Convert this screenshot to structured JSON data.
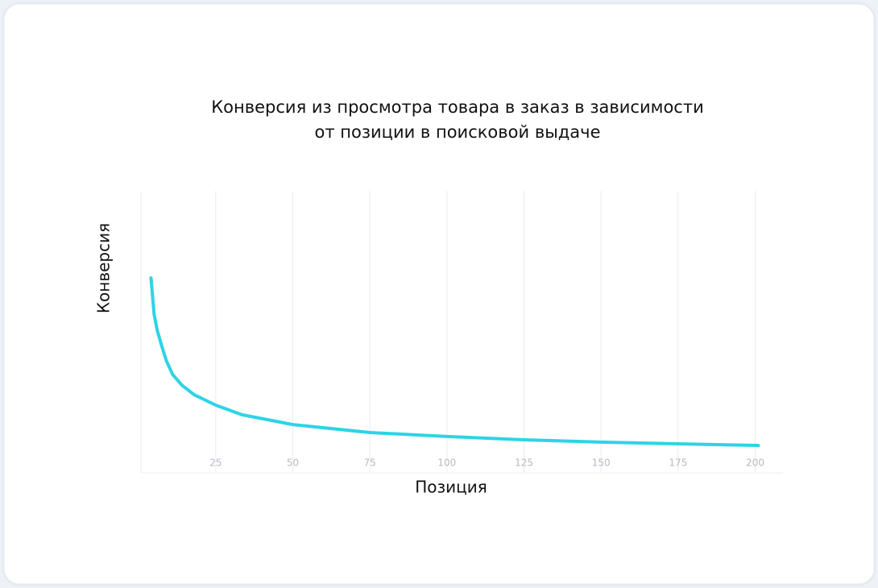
{
  "chart_data": {
    "type": "line",
    "title": [
      "Конверсия из просмотра товара в заказ в зависимости",
      "от позиции в поисковой выдаче"
    ],
    "x_label": "Позиция",
    "y_label": "Конверсия",
    "x": [
      4,
      5,
      6,
      7.5,
      9,
      11,
      14,
      18,
      25,
      33.5,
      50,
      75,
      100,
      125,
      150,
      175,
      201
    ],
    "series": [
      {
        "color": "#2ed3e6",
        "values": [
          69.1,
          56.3,
          50.6,
          44.9,
          39.7,
          34.9,
          31.1,
          27.7,
          24,
          20.6,
          17.1,
          14.3,
          12.9,
          11.7,
          10.9,
          10.3,
          9.7
        ]
      }
    ],
    "xlim": [
      1,
      209
    ],
    "ylim": [
      0,
      100
    ],
    "xticks": [
      25,
      50,
      75,
      100,
      125,
      150,
      175,
      200
    ],
    "grid": true
  }
}
